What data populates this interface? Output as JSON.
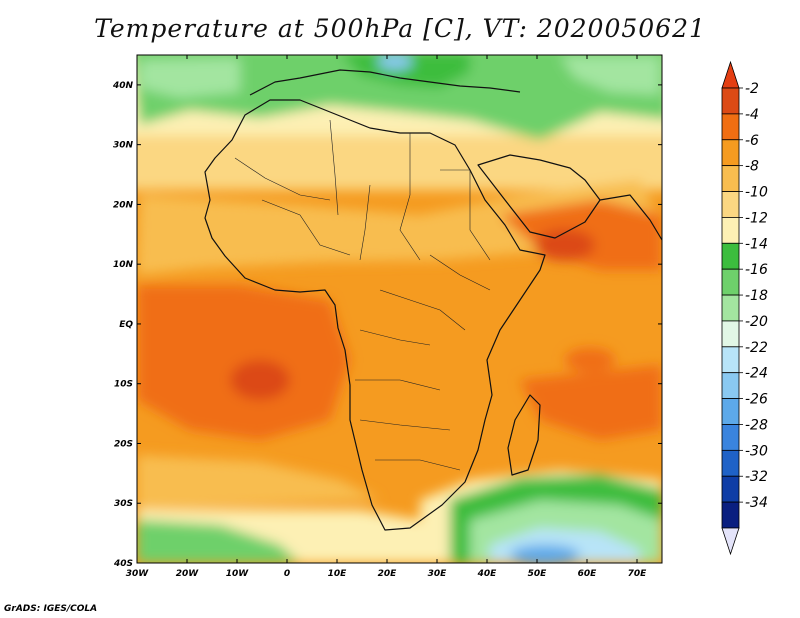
{
  "title": "Temperature at 500hPa [C], VT: 2020050621",
  "footer": "GrADS: IGES/COLA",
  "map": {
    "lon_range": [
      -30,
      75
    ],
    "lat_range": [
      -40,
      45
    ],
    "lon_ticks": [
      {
        "value": -30,
        "label": "30W"
      },
      {
        "value": -20,
        "label": "20W"
      },
      {
        "value": -10,
        "label": "10W"
      },
      {
        "value": 0,
        "label": "0"
      },
      {
        "value": 10,
        "label": "10E"
      },
      {
        "value": 20,
        "label": "20E"
      },
      {
        "value": 30,
        "label": "30E"
      },
      {
        "value": 40,
        "label": "40E"
      },
      {
        "value": 50,
        "label": "50E"
      },
      {
        "value": 60,
        "label": "60E"
      },
      {
        "value": 70,
        "label": "70E"
      }
    ],
    "lat_ticks": [
      {
        "value": 40,
        "label": "40N"
      },
      {
        "value": 30,
        "label": "30N"
      },
      {
        "value": 20,
        "label": "20N"
      },
      {
        "value": 10,
        "label": "10N"
      },
      {
        "value": 0,
        "label": "EQ"
      },
      {
        "value": -10,
        "label": "10S"
      },
      {
        "value": -20,
        "label": "20S"
      },
      {
        "value": -30,
        "label": "30S"
      },
      {
        "value": -40,
        "label": "40S"
      }
    ]
  },
  "colorbar": {
    "levels": [
      {
        "label": "-2",
        "color": "#dc4a15"
      },
      {
        "label": "-4",
        "color": "#f06e12"
      },
      {
        "label": "-6",
        "color": "#f59b20"
      },
      {
        "label": "-8",
        "color": "#f8bd4f"
      },
      {
        "label": "-10",
        "color": "#fbd782"
      },
      {
        "label": "-12",
        "color": "#fdf0b4"
      },
      {
        "label": "-14",
        "color": "#3cbd3e"
      },
      {
        "label": "-16",
        "color": "#6ed06b"
      },
      {
        "label": "-18",
        "color": "#a3e5a0"
      },
      {
        "label": "-20",
        "color": "#e2f7e6"
      },
      {
        "label": "-22",
        "color": "#b8e4f8"
      },
      {
        "label": "-24",
        "color": "#8ac9f1"
      },
      {
        "label": "-26",
        "color": "#5da9e9"
      },
      {
        "label": "-28",
        "color": "#3a84de"
      },
      {
        "label": "-30",
        "color": "#1f62c7"
      },
      {
        "label": "-32",
        "color": "#0f3da6"
      },
      {
        "label": "-34",
        "color": "#0a1f80"
      }
    ],
    "top_arrow_color": "#e43e12",
    "bottom_arrow_color": "#e4e4fa"
  }
}
